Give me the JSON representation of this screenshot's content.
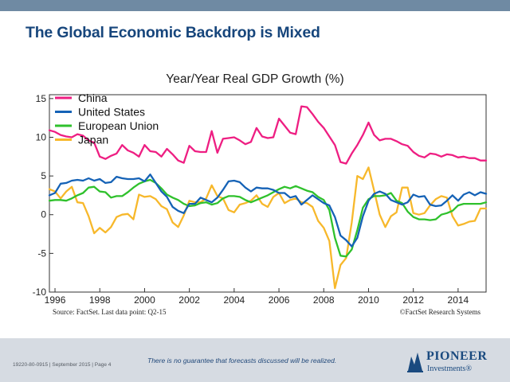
{
  "slide": {
    "title": "The Global Economic Backdrop is Mixed"
  },
  "footer": {
    "left": "19220-80-0915 | September 2015 | Page 4",
    "disclaimer": "There is no guarantee that forecasts discussed will be realized.",
    "logo_name": "PIONEER",
    "logo_sub": "Investments®"
  },
  "colors": {
    "title": "#17467c",
    "top_bar": "#6f8aa3",
    "footer_bg": "#d6dbe2",
    "china": "#ee1e82",
    "us": "#1562b6",
    "eu": "#2fc12c",
    "japan": "#f7b82b"
  },
  "chart_data": {
    "type": "line",
    "title": "Year/Year Real GDP Growth (%)",
    "xlabel": "",
    "ylabel": "",
    "ylim": [
      -10,
      15
    ],
    "xlim": [
      1995.75,
      2015.25
    ],
    "yticks": [
      "15",
      "10",
      "5",
      "0",
      "-5",
      "-10"
    ],
    "xticks": [
      "1996",
      "1998",
      "2000",
      "2002",
      "2004",
      "2006",
      "2008",
      "2010",
      "2012",
      "2014"
    ],
    "legend_placement": "top-left",
    "grid": false,
    "source": "Source: FactSet. Last data point: Q2-15",
    "copyright": "©FactSet Research Systems",
    "series": [
      {
        "name": "China",
        "color": "#ee1e82",
        "x": [
          1995.75,
          1996.0,
          1996.25,
          1996.5,
          1996.75,
          1997.0,
          1997.25,
          1997.5,
          1997.75,
          1998.0,
          1998.25,
          1998.5,
          1998.75,
          1999.0,
          1999.25,
          1999.5,
          1999.75,
          2000.0,
          2000.25,
          2000.5,
          2000.75,
          2001.0,
          2001.25,
          2001.5,
          2001.75,
          2002.0,
          2002.25,
          2002.5,
          2002.75,
          2003.0,
          2003.25,
          2003.5,
          2003.75,
          2004.0,
          2004.25,
          2004.5,
          2004.75,
          2005.0,
          2005.25,
          2005.5,
          2005.75,
          2006.0,
          2006.25,
          2006.5,
          2006.75,
          2007.0,
          2007.25,
          2007.5,
          2007.75,
          2008.0,
          2008.25,
          2008.5,
          2008.75,
          2009.0,
          2009.25,
          2009.5,
          2009.75,
          2010.0,
          2010.25,
          2010.5,
          2010.75,
          2011.0,
          2011.25,
          2011.5,
          2011.75,
          2012.0,
          2012.25,
          2012.5,
          2012.75,
          2013.0,
          2013.25,
          2013.5,
          2013.75,
          2014.0,
          2014.25,
          2014.5,
          2014.75,
          2015.0,
          2015.25
        ],
        "values": [
          10.9,
          10.7,
          10.3,
          10.1,
          10.0,
          10.4,
          10.2,
          9.6,
          9.3,
          7.5,
          7.2,
          7.6,
          7.9,
          9.0,
          8.3,
          8.0,
          7.5,
          9.0,
          8.2,
          8.1,
          7.5,
          8.5,
          7.8,
          7.0,
          6.7,
          8.9,
          8.2,
          8.1,
          8.1,
          10.8,
          8.0,
          9.8,
          9.9,
          10.0,
          9.6,
          9.1,
          9.4,
          11.2,
          10.1,
          9.9,
          10.0,
          12.4,
          11.5,
          10.6,
          10.4,
          14.0,
          13.9,
          13.0,
          12.0,
          11.2,
          10.1,
          9.0,
          6.8,
          6.6,
          7.9,
          9.0,
          10.3,
          11.9,
          10.3,
          9.6,
          9.8,
          9.8,
          9.5,
          9.1,
          8.9,
          8.1,
          7.6,
          7.4,
          7.9,
          7.8,
          7.5,
          7.8,
          7.7,
          7.4,
          7.5,
          7.3,
          7.3,
          7.0,
          7.0
        ]
      },
      {
        "name": "United States",
        "color": "#1562b6",
        "x": [
          1995.75,
          1996.0,
          1996.25,
          1996.5,
          1996.75,
          1997.0,
          1997.25,
          1997.5,
          1997.75,
          1998.0,
          1998.25,
          1998.5,
          1998.75,
          1999.0,
          1999.25,
          1999.5,
          1999.75,
          2000.0,
          2000.25,
          2000.5,
          2000.75,
          2001.0,
          2001.25,
          2001.5,
          2001.75,
          2002.0,
          2002.25,
          2002.5,
          2002.75,
          2003.0,
          2003.25,
          2003.5,
          2003.75,
          2004.0,
          2004.25,
          2004.5,
          2004.75,
          2005.0,
          2005.25,
          2005.5,
          2005.75,
          2006.0,
          2006.25,
          2006.5,
          2006.75,
          2007.0,
          2007.25,
          2007.5,
          2007.75,
          2008.0,
          2008.25,
          2008.5,
          2008.75,
          2009.0,
          2009.25,
          2009.5,
          2009.75,
          2010.0,
          2010.25,
          2010.5,
          2010.75,
          2011.0,
          2011.25,
          2011.5,
          2011.75,
          2012.0,
          2012.25,
          2012.5,
          2012.75,
          2013.0,
          2013.25,
          2013.5,
          2013.75,
          2014.0,
          2014.25,
          2014.5,
          2014.75,
          2015.0,
          2015.25
        ],
        "values": [
          2.5,
          2.8,
          4.0,
          4.1,
          4.4,
          4.5,
          4.4,
          4.7,
          4.4,
          4.6,
          4.1,
          4.2,
          4.9,
          4.7,
          4.6,
          4.6,
          4.7,
          4.3,
          5.2,
          4.1,
          3.0,
          2.3,
          1.0,
          0.5,
          0.2,
          1.4,
          1.4,
          2.2,
          1.9,
          1.6,
          2.2,
          3.2,
          4.3,
          4.4,
          4.2,
          3.5,
          3.0,
          3.5,
          3.4,
          3.4,
          3.2,
          2.8,
          2.8,
          2.2,
          2.4,
          1.3,
          1.9,
          2.5,
          2.0,
          1.5,
          1.2,
          -0.3,
          -2.7,
          -3.3,
          -4.1,
          -3.0,
          -0.2,
          1.8,
          2.7,
          3.0,
          2.7,
          1.9,
          1.6,
          1.3,
          1.6,
          2.6,
          2.3,
          2.4,
          1.3,
          1.1,
          1.2,
          1.8,
          2.5,
          1.8,
          2.6,
          2.9,
          2.5,
          2.9,
          2.7
        ]
      },
      {
        "name": "European Union",
        "color": "#2fc12c",
        "x": [
          1995.75,
          1996.0,
          1996.25,
          1996.5,
          1996.75,
          1997.0,
          1997.25,
          1997.5,
          1997.75,
          1998.0,
          1998.25,
          1998.5,
          1998.75,
          1999.0,
          1999.25,
          1999.5,
          1999.75,
          2000.0,
          2000.25,
          2000.5,
          2000.75,
          2001.0,
          2001.25,
          2001.5,
          2001.75,
          2002.0,
          2002.25,
          2002.5,
          2002.75,
          2003.0,
          2003.25,
          2003.5,
          2003.75,
          2004.0,
          2004.25,
          2004.5,
          2004.75,
          2005.0,
          2005.25,
          2005.5,
          2005.75,
          2006.0,
          2006.25,
          2006.5,
          2006.75,
          2007.0,
          2007.25,
          2007.5,
          2007.75,
          2008.0,
          2008.25,
          2008.5,
          2008.75,
          2009.0,
          2009.25,
          2009.5,
          2009.75,
          2010.0,
          2010.25,
          2010.5,
          2010.75,
          2011.0,
          2011.25,
          2011.5,
          2011.75,
          2012.0,
          2012.25,
          2012.5,
          2012.75,
          2013.0,
          2013.25,
          2013.5,
          2013.75,
          2014.0,
          2014.25,
          2014.5,
          2014.75,
          2015.0,
          2015.25
        ],
        "values": [
          1.8,
          1.9,
          1.9,
          1.8,
          2.1,
          2.5,
          2.8,
          3.5,
          3.6,
          3.0,
          2.9,
          2.2,
          2.4,
          2.4,
          2.9,
          3.5,
          4.0,
          4.3,
          4.5,
          4.1,
          3.4,
          2.6,
          2.2,
          1.9,
          1.4,
          1.1,
          1.2,
          1.5,
          1.6,
          1.3,
          1.5,
          2.1,
          2.4,
          2.4,
          2.3,
          1.9,
          1.6,
          1.9,
          2.2,
          2.5,
          2.9,
          3.3,
          3.6,
          3.4,
          3.7,
          3.4,
          3.1,
          2.9,
          2.3,
          1.9,
          0.6,
          -3.0,
          -5.3,
          -5.4,
          -4.5,
          -2.0,
          0.9,
          2.0,
          2.4,
          2.4,
          2.5,
          2.8,
          1.8,
          1.5,
          0.4,
          -0.3,
          -0.6,
          -0.6,
          -0.7,
          -0.6,
          0.0,
          0.2,
          0.5,
          1.2,
          1.4,
          1.4,
          1.4,
          1.4,
          1.6
        ]
      },
      {
        "name": "Japan",
        "color": "#f7b82b",
        "x": [
          1995.75,
          1996.0,
          1996.25,
          1996.5,
          1996.75,
          1997.0,
          1997.25,
          1997.5,
          1997.75,
          1998.0,
          1998.25,
          1998.5,
          1998.75,
          1999.0,
          1999.25,
          1999.5,
          1999.75,
          2000.0,
          2000.25,
          2000.5,
          2000.75,
          2001.0,
          2001.25,
          2001.5,
          2001.75,
          2002.0,
          2002.25,
          2002.5,
          2002.75,
          2003.0,
          2003.25,
          2003.5,
          2003.75,
          2004.0,
          2004.25,
          2004.5,
          2004.75,
          2005.0,
          2005.25,
          2005.5,
          2005.75,
          2006.0,
          2006.25,
          2006.5,
          2006.75,
          2007.0,
          2007.25,
          2007.5,
          2007.75,
          2008.0,
          2008.25,
          2008.5,
          2008.75,
          2009.0,
          2009.25,
          2009.5,
          2009.75,
          2010.0,
          2010.25,
          2010.5,
          2010.75,
          2011.0,
          2011.25,
          2011.5,
          2011.75,
          2012.0,
          2012.25,
          2012.5,
          2012.75,
          2013.0,
          2013.25,
          2013.5,
          2013.75,
          2014.0,
          2014.25,
          2014.5,
          2014.75,
          2015.0,
          2015.25
        ],
        "values": [
          3.3,
          3.0,
          2.1,
          3.0,
          3.6,
          1.6,
          1.5,
          -0.2,
          -2.4,
          -1.7,
          -2.3,
          -1.6,
          -0.3,
          0.0,
          0.1,
          -0.6,
          2.6,
          2.3,
          2.4,
          2.0,
          1.1,
          0.7,
          -1.0,
          -1.6,
          -0.1,
          1.8,
          1.6,
          1.6,
          2.1,
          3.8,
          2.4,
          2.1,
          0.6,
          0.3,
          1.3,
          1.5,
          1.8,
          2.5,
          1.4,
          1.0,
          2.3,
          2.8,
          1.5,
          1.9,
          2.1,
          1.6,
          1.5,
          1.0,
          -0.8,
          -1.7,
          -3.4,
          -9.5,
          -6.5,
          -5.6,
          -1.0,
          5.0,
          4.6,
          6.1,
          3.1,
          0.0,
          -1.6,
          -0.2,
          0.3,
          3.5,
          3.5,
          0.2,
          0.0,
          0.2,
          1.2,
          2.0,
          2.4,
          2.2,
          -0.2,
          -1.4,
          -1.2,
          -0.9,
          -0.8,
          0.8,
          0.8
        ]
      }
    ]
  }
}
